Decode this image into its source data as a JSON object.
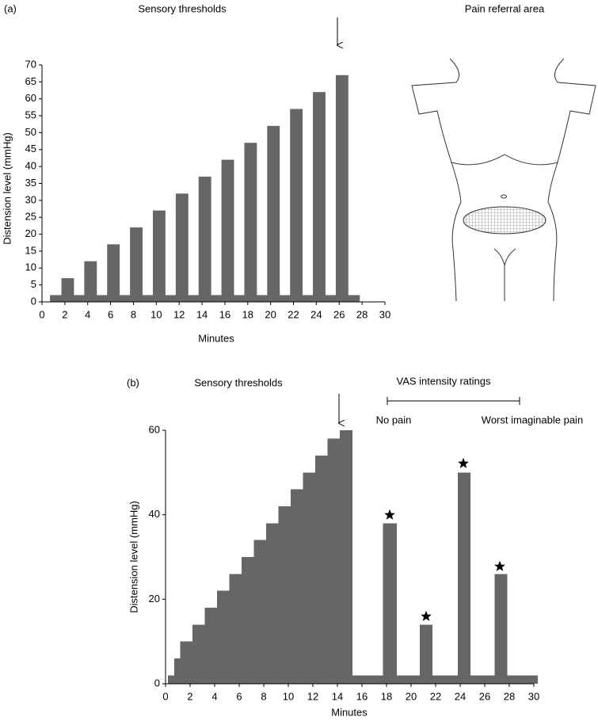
{
  "chart_data": [
    {
      "type": "bar",
      "label": "(a)",
      "title": "Sensory thresholds",
      "xlabel": "Minutes",
      "ylabel": "Distension level (mmHg)",
      "x": [
        2,
        4,
        6,
        8,
        10,
        12,
        14,
        16,
        18,
        20,
        22,
        24,
        26
      ],
      "values": [
        7,
        12,
        17,
        22,
        27,
        32,
        37,
        42,
        47,
        52,
        57,
        62,
        67
      ],
      "baseline": {
        "value": 2,
        "x": [
          0.7,
          27.8
        ]
      },
      "color": "#666666",
      "xlim": [
        0,
        30
      ],
      "xticks": [
        0,
        2,
        4,
        6,
        8,
        10,
        12,
        14,
        16,
        18,
        20,
        22,
        24,
        26,
        28,
        30
      ],
      "ylim": [
        0,
        70
      ],
      "yticks": [
        0,
        5,
        10,
        15,
        20,
        25,
        30,
        35,
        40,
        45,
        50,
        55,
        60,
        65,
        70
      ]
    },
    {
      "type": "histogram",
      "label": "(b)",
      "title": "Sensory thresholds",
      "xlabel": "Minutes",
      "ylabel": "Distension level (mmHg)",
      "bins": [
        0.2,
        0.7,
        1.2,
        2.2,
        3.2,
        4.2,
        5.2,
        6.2,
        7.2,
        8.2,
        9.2,
        10.2,
        11.2,
        12.2,
        13.2,
        14.2,
        15.2,
        17.7,
        18.8,
        20.7,
        21.7,
        23.8,
        24.8,
        26.8,
        27.8,
        30.3
      ],
      "values": [
        2,
        6,
        10,
        14,
        18,
        22,
        26,
        30,
        34,
        38,
        42,
        46,
        50,
        54,
        58,
        60,
        2,
        38,
        2,
        14,
        2,
        50,
        2,
        26,
        2
      ],
      "color": "#666666",
      "vas": {
        "title": "VAS intensity ratings",
        "low": "No pain",
        "high": "Worst imaginable pain"
      },
      "xlim": [
        0,
        30
      ],
      "xticks": [
        0,
        2,
        4,
        6,
        8,
        10,
        12,
        14,
        16,
        18,
        20,
        22,
        24,
        26,
        28,
        30
      ],
      "ylim": [
        0,
        60
      ],
      "yticks": [
        0,
        20,
        40,
        60
      ]
    }
  ],
  "diagram": {
    "title": "Pain referral area"
  }
}
